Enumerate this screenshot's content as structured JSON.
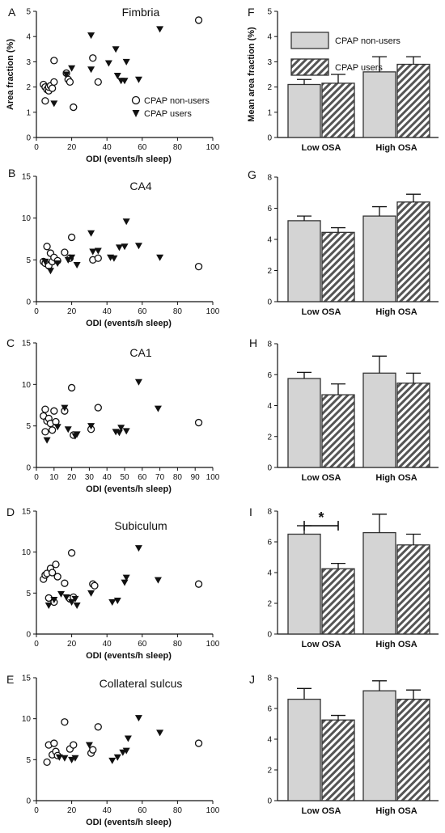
{
  "colors": {
    "axis": "#111111",
    "bar_nonuser": "#d4d4d4",
    "bar_user_stroke": "#333333",
    "hatch_bg": "#ffffff",
    "marker": "#111111"
  },
  "chart_data": [
    {
      "panel": "A",
      "type": "scatter",
      "title": "Fimbria",
      "xlabel": "ODI (events/h sleep)",
      "ylabel": "Area fraction (%)",
      "xlim": [
        0,
        100
      ],
      "ylim": [
        0,
        5
      ],
      "xticks": [
        0,
        20,
        40,
        60,
        80,
        100
      ],
      "yticks": [
        0,
        1,
        2,
        3,
        4,
        5
      ],
      "legend": {
        "position": "bottom-right",
        "entries": [
          {
            "label": "CPAP non-users",
            "marker": "circle"
          },
          {
            "label": "CPAP users",
            "marker": "triangle"
          }
        ]
      },
      "series": [
        {
          "name": "CPAP non-users",
          "marker": "circle",
          "points": [
            [
              4,
              2.1
            ],
            [
              5,
              1.45
            ],
            [
              5,
              2.0
            ],
            [
              6,
              1.9
            ],
            [
              7,
              1.85
            ],
            [
              7,
              2.0
            ],
            [
              8,
              2.05
            ],
            [
              9,
              1.95
            ],
            [
              10,
              3.05
            ],
            [
              10,
              2.2
            ],
            [
              17,
              2.55
            ],
            [
              18,
              2.3
            ],
            [
              19,
              2.2
            ],
            [
              21,
              1.2
            ],
            [
              32,
              3.15
            ],
            [
              35,
              2.2
            ],
            [
              92,
              4.65
            ]
          ]
        },
        {
          "name": "CPAP users",
          "marker": "triangle",
          "points": [
            [
              10,
              1.35
            ],
            [
              17,
              2.5
            ],
            [
              20,
              2.75
            ],
            [
              31,
              4.05
            ],
            [
              31,
              2.7
            ],
            [
              41,
              2.95
            ],
            [
              45,
              3.5
            ],
            [
              46,
              2.45
            ],
            [
              48,
              2.25
            ],
            [
              50,
              2.25
            ],
            [
              51,
              3.0
            ],
            [
              58,
              2.3
            ],
            [
              70,
              4.3
            ]
          ]
        }
      ]
    },
    {
      "panel": "F",
      "type": "bar",
      "ylabel": "Mean area fraction (%)",
      "categories": [
        "Low OSA",
        "High OSA"
      ],
      "ylim": [
        0,
        5
      ],
      "yticks": [
        0,
        1,
        2,
        3,
        4,
        5
      ],
      "legend": {
        "position": "top-left",
        "entries": [
          {
            "label": "CPAP non-users",
            "style": "solid"
          },
          {
            "label": "CPAP users",
            "style": "hatched"
          }
        ]
      },
      "series": [
        {
          "name": "CPAP non-users",
          "values": [
            2.1,
            2.6
          ],
          "errors": [
            0.2,
            0.6
          ]
        },
        {
          "name": "CPAP users",
          "values": [
            2.15,
            2.9
          ],
          "errors": [
            0.35,
            0.3
          ]
        }
      ],
      "annotations": []
    },
    {
      "panel": "B",
      "type": "scatter",
      "title": "CA4",
      "xlabel": "ODI (events/h sleep)",
      "xlim": [
        0,
        100
      ],
      "ylim": [
        0,
        15
      ],
      "xticks": [
        0,
        20,
        40,
        60,
        80,
        100
      ],
      "yticks": [
        0,
        5,
        10,
        15
      ],
      "series": [
        {
          "name": "CPAP non-users",
          "marker": "circle",
          "points": [
            [
              4,
              4.8
            ],
            [
              5,
              4.6
            ],
            [
              6,
              6.6
            ],
            [
              7,
              4.3
            ],
            [
              8,
              5.8
            ],
            [
              9,
              4.8
            ],
            [
              10,
              5.3
            ],
            [
              12,
              4.9
            ],
            [
              16,
              5.9
            ],
            [
              19,
              5.2
            ],
            [
              20,
              7.7
            ],
            [
              32,
              5.0
            ],
            [
              35,
              5.2
            ],
            [
              92,
              4.2
            ]
          ]
        },
        {
          "name": "CPAP users",
          "marker": "triangle",
          "points": [
            [
              5,
              4.8
            ],
            [
              8,
              3.7
            ],
            [
              12,
              4.6
            ],
            [
              18,
              5.0
            ],
            [
              20,
              5.3
            ],
            [
              23,
              4.4
            ],
            [
              31,
              8.2
            ],
            [
              32,
              6.0
            ],
            [
              35,
              6.1
            ],
            [
              42,
              5.3
            ],
            [
              44,
              5.2
            ],
            [
              47,
              6.5
            ],
            [
              50,
              6.6
            ],
            [
              51,
              9.6
            ],
            [
              58,
              6.7
            ],
            [
              70,
              5.3
            ]
          ]
        }
      ]
    },
    {
      "panel": "G",
      "type": "bar",
      "categories": [
        "Low OSA",
        "High OSA"
      ],
      "ylim": [
        0,
        8
      ],
      "yticks": [
        0,
        2,
        4,
        6,
        8
      ],
      "series": [
        {
          "name": "CPAP non-users",
          "values": [
            5.2,
            5.5
          ],
          "errors": [
            0.3,
            0.6
          ]
        },
        {
          "name": "CPAP users",
          "values": [
            4.45,
            6.4
          ],
          "errors": [
            0.3,
            0.5
          ]
        }
      ],
      "annotations": []
    },
    {
      "panel": "C",
      "type": "scatter",
      "title": "CA1",
      "xlabel": "ODI (events/h sleep)",
      "xlim": [
        0,
        100
      ],
      "ylim": [
        0,
        15
      ],
      "xticks": [
        0,
        10,
        20,
        30,
        40,
        50,
        60,
        70,
        80,
        90,
        100
      ],
      "yticks": [
        0,
        5,
        10,
        15
      ],
      "series": [
        {
          "name": "CPAP non-users",
          "marker": "circle",
          "points": [
            [
              4,
              6.2
            ],
            [
              5,
              7.0
            ],
            [
              5,
              4.3
            ],
            [
              6,
              5.6
            ],
            [
              7,
              5.9
            ],
            [
              8,
              5.3
            ],
            [
              9,
              4.5
            ],
            [
              10,
              6.8
            ],
            [
              11,
              5.5
            ],
            [
              16,
              6.8
            ],
            [
              20,
              9.6
            ],
            [
              21,
              3.9
            ],
            [
              31,
              4.6
            ],
            [
              35,
              7.2
            ],
            [
              92,
              5.4
            ]
          ]
        },
        {
          "name": "CPAP users",
          "marker": "triangle",
          "points": [
            [
              6,
              3.3
            ],
            [
              12,
              4.9
            ],
            [
              16,
              7.2
            ],
            [
              18,
              4.6
            ],
            [
              22,
              3.8
            ],
            [
              23,
              4.0
            ],
            [
              31,
              5.0
            ],
            [
              45,
              4.3
            ],
            [
              47,
              4.2
            ],
            [
              48,
              4.8
            ],
            [
              51,
              4.4
            ],
            [
              58,
              10.3
            ],
            [
              69,
              7.1
            ]
          ]
        }
      ]
    },
    {
      "panel": "H",
      "type": "bar",
      "categories": [
        "Low OSA",
        "High OSA"
      ],
      "ylim": [
        0,
        8
      ],
      "yticks": [
        0,
        2,
        4,
        6,
        8
      ],
      "series": [
        {
          "name": "CPAP non-users",
          "values": [
            5.75,
            6.1
          ],
          "errors": [
            0.4,
            1.1
          ]
        },
        {
          "name": "CPAP users",
          "values": [
            4.7,
            5.45
          ],
          "errors": [
            0.7,
            0.65
          ]
        }
      ],
      "annotations": []
    },
    {
      "panel": "D",
      "type": "scatter",
      "title": "Subiculum",
      "xlabel": "ODI (events/h sleep)",
      "xlim": [
        0,
        100
      ],
      "ylim": [
        0,
        15
      ],
      "xticks": [
        0,
        20,
        40,
        60,
        80,
        100
      ],
      "yticks": [
        0,
        5,
        10,
        15
      ],
      "series": [
        {
          "name": "CPAP non-users",
          "marker": "circle",
          "points": [
            [
              4,
              6.7
            ],
            [
              5,
              7.2
            ],
            [
              6,
              7.4
            ],
            [
              7,
              4.4
            ],
            [
              8,
              8.0
            ],
            [
              9,
              7.5
            ],
            [
              10,
              3.9
            ],
            [
              11,
              8.5
            ],
            [
              12,
              7.0
            ],
            [
              16,
              6.2
            ],
            [
              19,
              4.3
            ],
            [
              20,
              9.9
            ],
            [
              21,
              4.5
            ],
            [
              32,
              6.1
            ],
            [
              33,
              5.9
            ],
            [
              92,
              6.1
            ]
          ]
        },
        {
          "name": "CPAP users",
          "marker": "triangle",
          "points": [
            [
              7,
              3.5
            ],
            [
              10,
              4.2
            ],
            [
              14,
              4.9
            ],
            [
              17,
              4.5
            ],
            [
              20,
              3.9
            ],
            [
              22,
              4.3
            ],
            [
              23,
              3.5
            ],
            [
              31,
              5.0
            ],
            [
              43,
              3.9
            ],
            [
              46,
              4.1
            ],
            [
              50,
              6.3
            ],
            [
              51,
              6.9
            ],
            [
              58,
              10.5
            ],
            [
              69,
              6.6
            ]
          ]
        }
      ]
    },
    {
      "panel": "I",
      "type": "bar",
      "categories": [
        "Low OSA",
        "High OSA"
      ],
      "ylim": [
        0,
        8
      ],
      "yticks": [
        0,
        2,
        4,
        6,
        8
      ],
      "series": [
        {
          "name": "CPAP non-users",
          "values": [
            6.5,
            6.6
          ],
          "errors": [
            0.55,
            1.2
          ]
        },
        {
          "name": "CPAP users",
          "values": [
            4.25,
            5.8
          ],
          "errors": [
            0.35,
            0.7
          ]
        }
      ],
      "annotations": [
        {
          "text": "*",
          "between": "Low OSA"
        }
      ]
    },
    {
      "panel": "E",
      "type": "scatter",
      "title": "Collateral sulcus",
      "xlabel": "ODI (events/h sleep)",
      "xlim": [
        0,
        100
      ],
      "ylim": [
        0,
        15
      ],
      "xticks": [
        0,
        20,
        40,
        60,
        80,
        100
      ],
      "yticks": [
        0,
        5,
        10,
        15
      ],
      "series": [
        {
          "name": "CPAP non-users",
          "marker": "circle",
          "points": [
            [
              6,
              4.7
            ],
            [
              7,
              6.8
            ],
            [
              9,
              5.6
            ],
            [
              10,
              7.0
            ],
            [
              11,
              6.0
            ],
            [
              12,
              5.5
            ],
            [
              16,
              9.6
            ],
            [
              19,
              6.3
            ],
            [
              21,
              6.8
            ],
            [
              31,
              5.8
            ],
            [
              32,
              6.2
            ],
            [
              35,
              9.0
            ],
            [
              92,
              7.0
            ]
          ]
        },
        {
          "name": "CPAP users",
          "marker": "triangle",
          "points": [
            [
              13,
              5.3
            ],
            [
              16,
              5.2
            ],
            [
              20,
              5.0
            ],
            [
              22,
              5.2
            ],
            [
              30,
              6.8
            ],
            [
              43,
              4.9
            ],
            [
              46,
              5.3
            ],
            [
              49,
              5.9
            ],
            [
              51,
              6.1
            ],
            [
              52,
              7.6
            ],
            [
              58,
              10.1
            ],
            [
              70,
              8.3
            ]
          ]
        }
      ]
    },
    {
      "panel": "J",
      "type": "bar",
      "categories": [
        "Low OSA",
        "High OSA"
      ],
      "ylim": [
        0,
        8
      ],
      "yticks": [
        0,
        2,
        4,
        6,
        8
      ],
      "series": [
        {
          "name": "CPAP non-users",
          "values": [
            6.6,
            7.15
          ],
          "errors": [
            0.7,
            0.65
          ]
        },
        {
          "name": "CPAP users",
          "values": [
            5.25,
            6.6
          ],
          "errors": [
            0.3,
            0.6
          ]
        }
      ],
      "annotations": []
    }
  ]
}
